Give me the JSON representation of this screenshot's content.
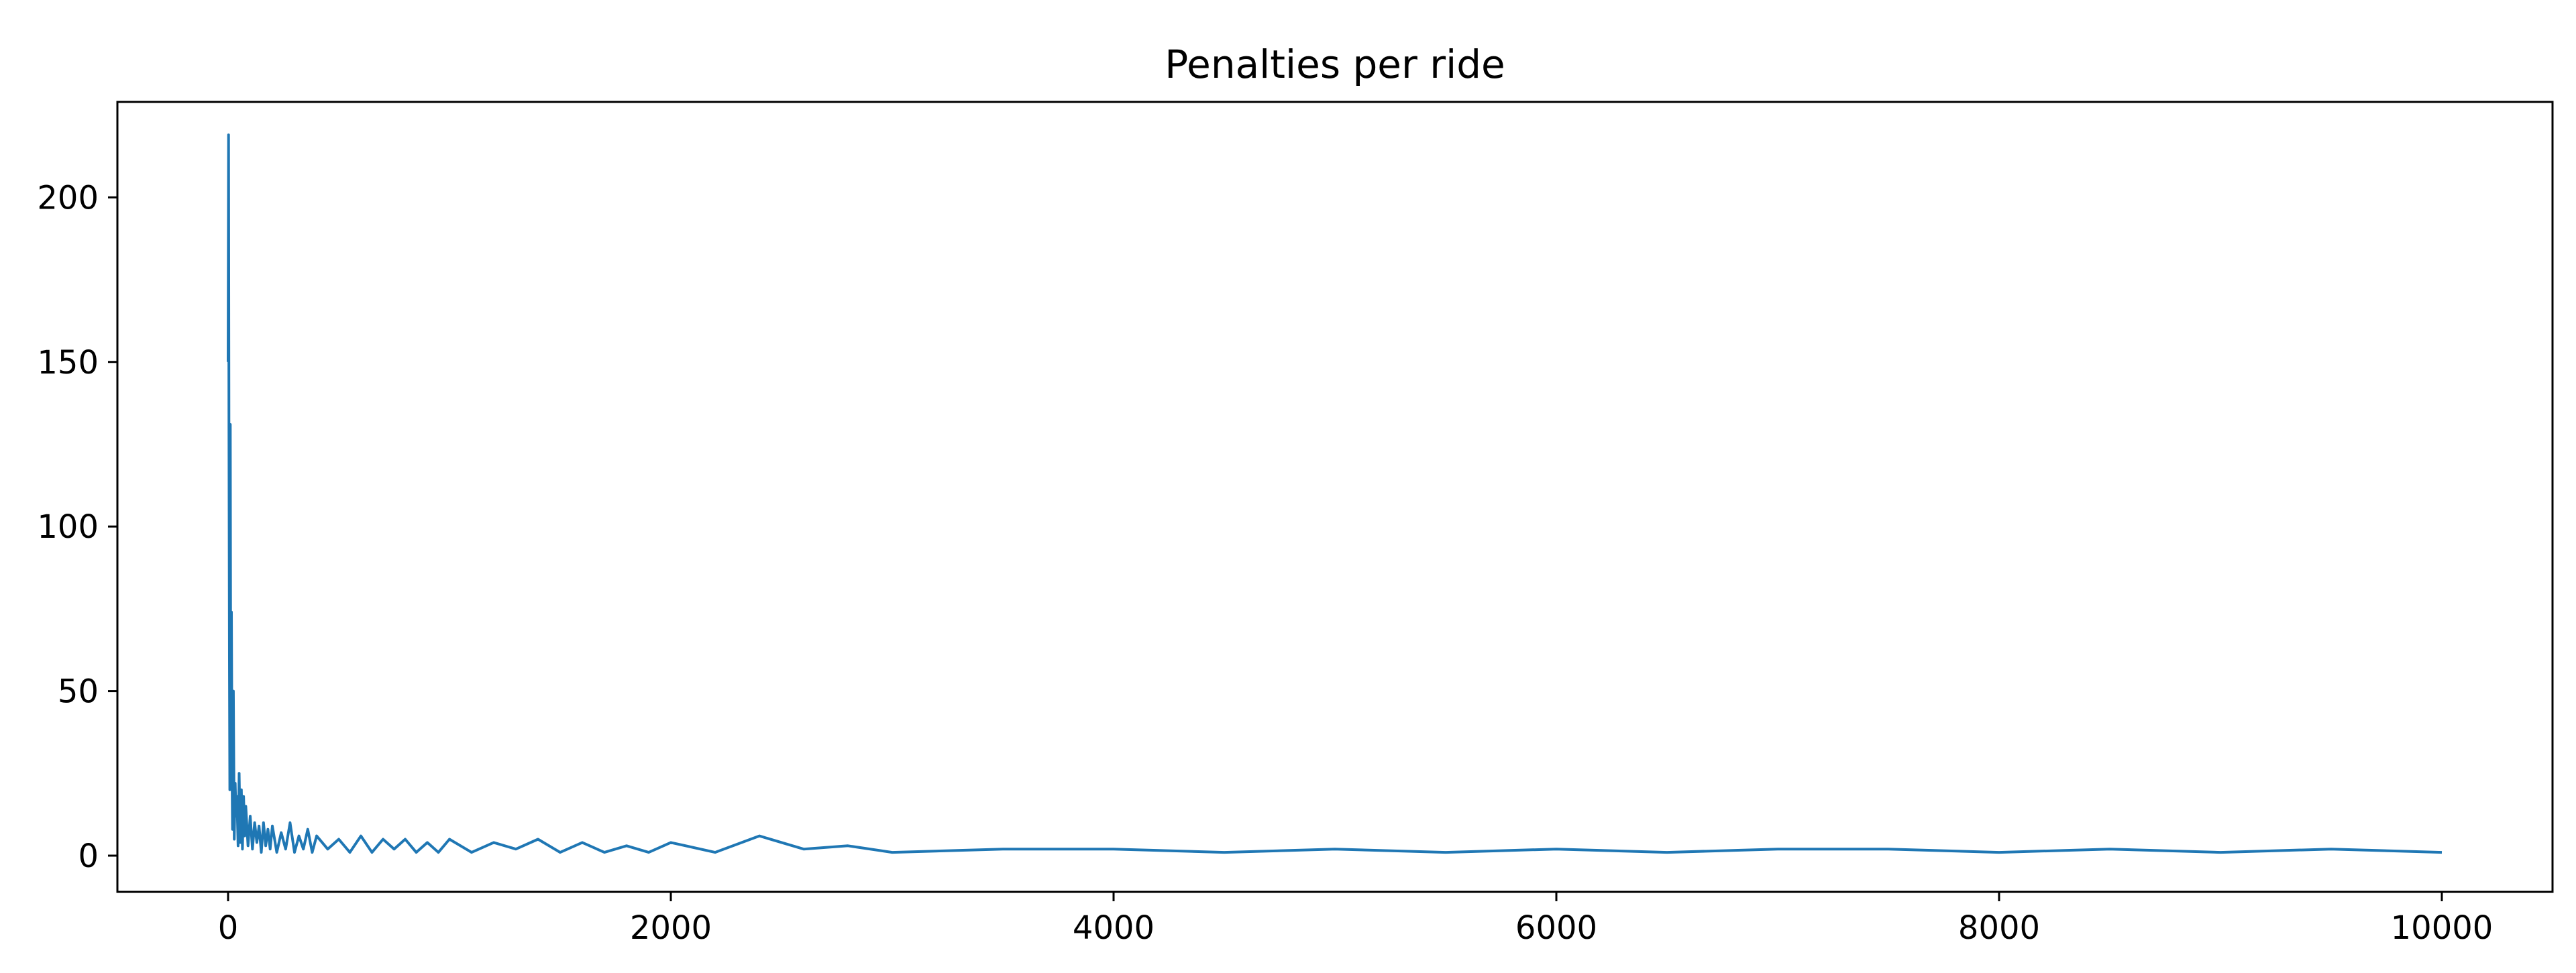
{
  "chart_data": {
    "type": "line",
    "title": "Penalties per ride",
    "xlabel": "",
    "ylabel": "",
    "xlim": [
      -500,
      10500
    ],
    "ylim": [
      -11,
      229
    ],
    "xticks": [
      0,
      2000,
      4000,
      6000,
      8000,
      10000
    ],
    "yticks": [
      0,
      50,
      100,
      150,
      200
    ],
    "grid": false,
    "legend": "none",
    "line_color": "#1f77b4",
    "series": [
      {
        "x": [
          0,
          2,
          4,
          6,
          8,
          10,
          12,
          15,
          18,
          20,
          24,
          28,
          32,
          36,
          40,
          45,
          50,
          55,
          60,
          65,
          70,
          75,
          80,
          90,
          100,
          110,
          120,
          130,
          140,
          150,
          160,
          170,
          180,
          190,
          200,
          220,
          240,
          260,
          280,
          300,
          320,
          340,
          360,
          380,
          400,
          450,
          500,
          550,
          600,
          650,
          700,
          750,
          800,
          850,
          900,
          950,
          1000,
          1100,
          1200,
          1300,
          1400,
          1500,
          1600,
          1700,
          1800,
          1900,
          2000,
          2200,
          2400,
          2600,
          2800,
          3000,
          3500,
          4000,
          4500,
          5000,
          5500,
          6000,
          6500,
          7000,
          7500,
          8000,
          8500,
          9000,
          9500,
          10000
        ],
        "y": [
          150,
          219,
          130,
          60,
          20,
          131,
          40,
          74,
          25,
          8,
          50,
          5,
          22,
          12,
          18,
          3,
          25,
          4,
          20,
          2,
          18,
          6,
          15,
          3,
          12,
          2,
          10,
          4,
          9,
          1,
          10,
          3,
          8,
          2,
          9,
          1,
          7,
          2,
          10,
          1,
          6,
          2,
          8,
          1,
          6,
          2,
          5,
          1,
          6,
          1,
          5,
          2,
          5,
          1,
          4,
          1,
          5,
          1,
          4,
          2,
          5,
          1,
          4,
          1,
          3,
          1,
          4,
          1,
          6,
          2,
          3,
          1,
          2,
          2,
          1,
          2,
          1,
          2,
          1,
          2,
          2,
          1,
          2,
          1,
          2,
          1
        ]
      }
    ]
  }
}
